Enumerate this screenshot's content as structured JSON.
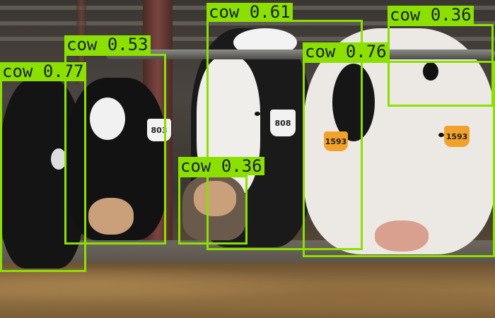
{
  "detections": [
    {
      "label": "cow",
      "score": "0.77"
    },
    {
      "label": "cow",
      "score": "0.53"
    },
    {
      "label": "cow",
      "score": "0.61"
    },
    {
      "label": "cow",
      "score": "0.76"
    },
    {
      "label": "cow",
      "score": "0.36"
    },
    {
      "label": "cow",
      "score": "0.36"
    }
  ],
  "ear_tags": [
    "803",
    "808",
    "1593",
    "1593"
  ],
  "colors": {
    "box": "#8be000",
    "label_text": "#1a1f3d"
  }
}
